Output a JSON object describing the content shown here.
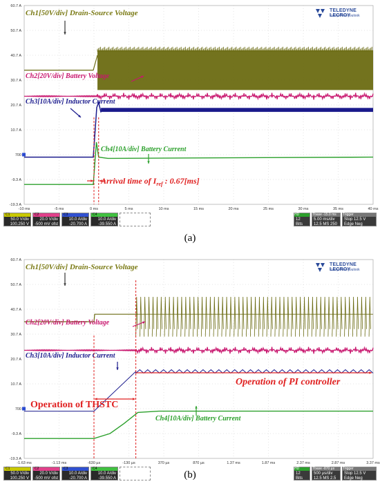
{
  "chart_data": [
    {
      "type": "line",
      "panel": "(a)",
      "logo": {
        "brand": "TELEDYNE LECROY",
        "tagline": "Everywhereyoulook"
      },
      "y_tick_labels": [
        "60.7 A",
        "50.7 A",
        "40.7 A",
        "30.7 A",
        "20.7 A",
        "10.7 A",
        "700 ",
        "-9.3 A",
        "-19.3 A"
      ],
      "x_tick_labels": [
        "-10 ms",
        "-5 ms",
        "0 ms",
        "5 ms",
        "10 ms",
        "15 ms",
        "20 ms",
        "25 ms",
        "30 ms",
        "35 ms",
        "40 ms"
      ],
      "x_range_ms": [
        -10,
        40
      ],
      "annotations": {
        "ch1": "Ch1[50V/div] Drain-Source Voltage",
        "ch2": "Ch2[20V/div] Battery Voltage",
        "ch3": "Ch3[10A/div] Inductor Current",
        "ch4": "Ch4[10A/div] Battery Current",
        "arrival_prefix": "Arrival time of I",
        "arrival_sub": "ref",
        "arrival_suffix": " : 0.67[ms]"
      },
      "series": [
        {
          "name": "Ch1[50V/div] Drain-Source Voltage",
          "color": "#6b6b12",
          "x": [
            -10,
            -0.1,
            0.5,
            40
          ],
          "y_div": [
            3.4,
            3.4,
            4.0,
            4.0
          ],
          "switching_after_ms": 0.5,
          "switch_band_div": [
            2.6,
            4.2
          ]
        },
        {
          "name": "Ch2[20V/div] Battery Voltage",
          "color": "#c8166e",
          "x": [
            -10,
            0,
            40
          ],
          "y_div": [
            2.35,
            2.35,
            2.35
          ]
        },
        {
          "name": "Ch3[10A/div] Inductor Current",
          "color": "#1a1a8c",
          "x": [
            -10,
            -0.1,
            0.4,
            0.67,
            1.0,
            40
          ],
          "y_div": [
            -0.1,
            -0.1,
            1.9,
            2.1,
            1.7,
            1.8
          ]
        },
        {
          "name": "Ch4[10A/div] Battery Current",
          "color": "#2ca02c",
          "x": [
            -10,
            -0.1,
            0.35,
            0.67,
            2,
            40
          ],
          "y_div": [
            -1.2,
            -1.2,
            0.5,
            -0.1,
            -0.15,
            -0.1
          ]
        }
      ],
      "channel_panel": [
        {
          "label": "C1",
          "color": "#c8c800",
          "line1": "50.0 V/div",
          "line2": "100.250 V"
        },
        {
          "label": "C2",
          "color": "#e0408a",
          "line1": "20.0 V/div",
          "line2": "-500 mV ofst"
        },
        {
          "label": "C3",
          "color": "#3050d0",
          "line1": "10.0 A/div",
          "line2": "-20.700 A"
        },
        {
          "label": "C4",
          "color": "#40c040",
          "line1": "10.0 A/div",
          "line2": "-39.550 A"
        }
      ],
      "timebase_panel": {
        "hd": "HD",
        "bits": "12 Bits",
        "tbase_label": "Tbase",
        "tbase_val": "-15.0 ms",
        "tdiv": "5.00 ms/div",
        "rate1": "12.5 MS",
        "rate2": "250 M..",
        "trigger_label": "Trigger",
        "trig_mode": "Stop",
        "trig_val": "12.5 V",
        "trig_type": "Edge",
        "trig_slope": "Neg"
      }
    },
    {
      "type": "line",
      "panel": "(b)",
      "logo": {
        "brand": "TELEDYNE LECROY",
        "tagline": "Everywhereyoulook"
      },
      "y_tick_labels": [
        "60.7 A",
        "50.7 A",
        "40.7 A",
        "30.7 A",
        "20.7 A",
        "10.7 A",
        "700 ",
        "-9.3 A",
        "-19.3 A"
      ],
      "x_tick_labels": [
        "-1.63 ms",
        "-1.13 ms",
        "-630 µs",
        "-130 µs",
        "370 µs",
        "870 µs",
        "1.37 ms",
        "1.87 ms",
        "2.37 ms",
        "2.87 ms",
        "3.37 ms"
      ],
      "x_range_ms": [
        -1.63,
        3.37
      ],
      "annotations": {
        "ch1": "Ch1[50V/div] Drain-Source Voltage",
        "ch2": "Ch2[20V/div] Battery Voltage",
        "ch3": "Ch3[10A/div] Inductor Current",
        "ch4": "Ch4[10A/div] Battery Current",
        "thstc": "Operation of THSTC",
        "pi": "Operation of PI controller"
      },
      "series": [
        {
          "name": "Ch1[50V/div] Drain-Source Voltage",
          "color": "#6b6b12",
          "x": [
            -1.63,
            -0.63,
            -0.62,
            0.0,
            3.37
          ],
          "y_div": [
            3.5,
            3.5,
            3.8,
            3.8,
            3.8
          ],
          "switching_after_ms": -0.03,
          "switch_band_div": [
            2.9,
            4.5
          ]
        },
        {
          "name": "Ch2[20V/div] Battery Voltage",
          "color": "#c8166e",
          "x": [
            -1.63,
            3.37
          ],
          "y_div": [
            2.35,
            2.35
          ]
        },
        {
          "name": "Ch3[10A/div] Inductor Current",
          "color": "#1a1a8c",
          "x": [
            -1.63,
            -0.63,
            -0.03,
            3.37
          ],
          "y_div": [
            -0.1,
            -0.1,
            1.5,
            1.5
          ],
          "ripple_after_ms": -0.03
        },
        {
          "name": "Ch4[10A/div] Battery Current",
          "color": "#2ca02c",
          "x": [
            -1.63,
            -0.63,
            -0.4,
            -0.2,
            0.0,
            0.3,
            0.8,
            3.37
          ],
          "y_div": [
            -1.2,
            -1.2,
            -1.0,
            -0.6,
            -0.15,
            -0.1,
            -0.1,
            -0.1
          ]
        }
      ],
      "channel_panel": [
        {
          "label": "C1",
          "color": "#c8c800",
          "line1": "50.0 V/div",
          "line2": "100.250 V"
        },
        {
          "label": "C2",
          "color": "#e0408a",
          "line1": "20.0 V/div",
          "line2": "-500 mV ofst"
        },
        {
          "label": "C3",
          "color": "#3050d0",
          "line1": "10.0 A/div",
          "line2": "-20.700 A"
        },
        {
          "label": "C4",
          "color": "#40c040",
          "line1": "10.0 A/div",
          "line2": "-39.550 A"
        }
      ],
      "timebase_panel": {
        "hd": "HD",
        "bits": "12 Bits",
        "tbase_label": "Tbase",
        "tbase_val": "-870 µs",
        "tdiv": "500 µs/div",
        "rate1": "12.5 MS",
        "rate2": "2.5 GS/s",
        "trigger_label": "Trigger",
        "trig_mode": "Stop",
        "trig_val": "12.5 V",
        "trig_type": "Edge",
        "trig_slope": "Neg"
      }
    }
  ],
  "captions": {
    "a": "(a)",
    "b": "(b)"
  }
}
